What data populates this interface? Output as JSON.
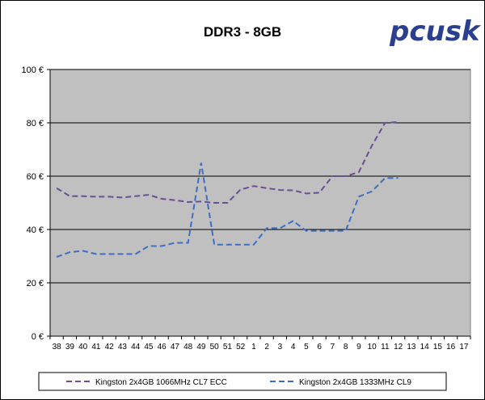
{
  "logo_text": "pcusk",
  "colors": {
    "plot_bg": "#c0c0c0",
    "series1": "#6a4f94",
    "series2": "#3c6fc2",
    "logo_blue": "#2b3f8f",
    "logo_flame": "#f08a10"
  },
  "chart_data": {
    "type": "line",
    "title": "DDR3 - 8GB",
    "xlabel": "",
    "ylabel": "",
    "ylim": [
      0,
      100
    ],
    "yticks": [
      "0 €",
      "20 €",
      "40 €",
      "60 €",
      "80 €",
      "100 €"
    ],
    "ytick_values": [
      0,
      20,
      40,
      60,
      80,
      100
    ],
    "grid": true,
    "legend_position": "bottom",
    "categories": [
      "38",
      "39",
      "40",
      "41",
      "42",
      "43",
      "44",
      "45",
      "46",
      "47",
      "48",
      "49",
      "50",
      "51",
      "52",
      "1",
      "2",
      "3",
      "4",
      "5",
      "6",
      "7",
      "8",
      "9",
      "10",
      "11",
      "12",
      "13",
      "14",
      "15",
      "16",
      "17"
    ],
    "series": [
      {
        "name": "Kingston 2x4GB 1066MHz CL7 ECC",
        "color": "#6a4f94",
        "values": [
          55.5,
          52.5,
          52.5,
          52.3,
          52.3,
          52,
          52.5,
          53,
          51.5,
          51,
          50.3,
          50.5,
          50,
          50,
          55,
          56.3,
          55.5,
          54.8,
          54.7,
          53.5,
          53.8,
          60,
          60,
          61.5,
          71.5,
          80,
          80.3,
          null,
          null,
          null,
          null,
          null
        ]
      },
      {
        "name": "Kingston 2x4GB 1333MHz CL9",
        "color": "#3c6fc2",
        "values": [
          29.7,
          31.5,
          32,
          30.8,
          30.8,
          30.8,
          30.8,
          33.8,
          33.8,
          35,
          35,
          65,
          34.3,
          34.3,
          34.3,
          34.3,
          40.5,
          40.5,
          43.2,
          39.5,
          39.5,
          39.5,
          39.5,
          52.3,
          54.3,
          59.3,
          59.3,
          null,
          null,
          null,
          null,
          null
        ]
      }
    ]
  }
}
